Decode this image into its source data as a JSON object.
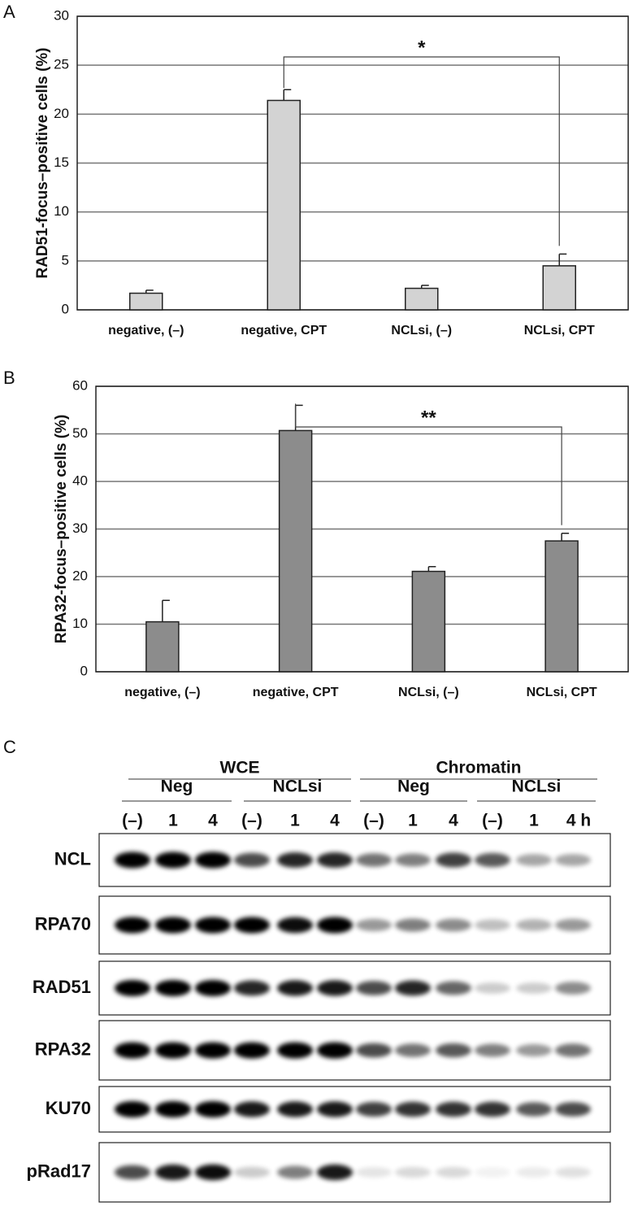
{
  "chart_data": [
    {
      "type": "bar",
      "panel": "A",
      "ylabel": "RAD51-focus–positive cells (%)",
      "categories": [
        "negative, (–)",
        "negative, CPT",
        "NCLsi, (–)",
        "NCLsi, CPT"
      ],
      "values": [
        1.7,
        21.4,
        2.2,
        4.5
      ],
      "errors": [
        0.3,
        1.1,
        0.3,
        1.2
      ],
      "color": "#d3d3d3",
      "ylim": [
        0,
        30
      ],
      "yticks": [
        0,
        5,
        10,
        15,
        20,
        25,
        30
      ],
      "grid": true,
      "annotation": "*"
    },
    {
      "type": "bar",
      "panel": "B",
      "ylabel": "RPA32-focus–positive cells (%)",
      "categories": [
        "negative, (–)",
        "negative, CPT",
        "NCLsi, (–)",
        "NCLsi, CPT"
      ],
      "values": [
        10.5,
        50.7,
        21.1,
        27.5
      ],
      "errors": [
        4.5,
        5.3,
        1.0,
        1.6
      ],
      "color": "#8c8c8c",
      "ylim": [
        0,
        60
      ],
      "yticks": [
        0,
        10,
        20,
        30,
        40,
        50,
        60
      ],
      "grid": true,
      "annotation": "**"
    }
  ],
  "blot": {
    "panel": "C",
    "groups": [
      "WCE",
      "Chromatin"
    ],
    "subgroups": [
      "Neg",
      "NCLsi",
      "Neg",
      "NCLsi"
    ],
    "lanes": [
      "(–)",
      "1",
      "4",
      "(–)",
      "1",
      "4",
      "(–)",
      "1",
      "4",
      "(–)",
      "1",
      "4 h"
    ],
    "rows": [
      "NCL",
      "RPA70",
      "RAD51",
      "RPA32",
      "KU70",
      "pRad17"
    ]
  }
}
